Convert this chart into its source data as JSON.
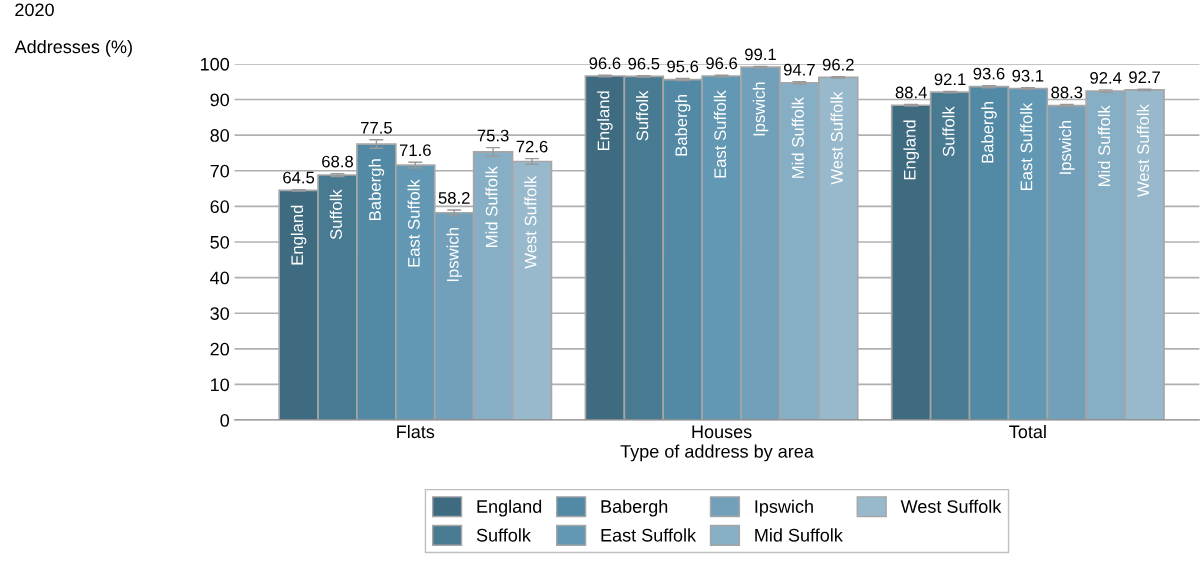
{
  "chart_data": {
    "type": "bar",
    "title": "2020",
    "ylabel": "Addresses (%)",
    "xlabel": "Type of address by area",
    "categories": [
      "Flats",
      "Houses",
      "Total"
    ],
    "series": [
      {
        "name": "England",
        "color": "#3f6b80",
        "values": [
          64.5,
          96.6,
          88.4
        ],
        "errors": [
          0.2,
          0.2,
          0.2
        ]
      },
      {
        "name": "Suffolk",
        "color": "#487a92",
        "values": [
          68.8,
          96.5,
          92.1
        ],
        "errors": [
          0.4,
          0.2,
          0.2
        ]
      },
      {
        "name": "Babergh",
        "color": "#528aa6",
        "values": [
          77.5,
          95.6,
          93.6
        ],
        "errors": [
          1.2,
          0.3,
          0.3
        ]
      },
      {
        "name": "East Suffolk",
        "color": "#6298b3",
        "values": [
          71.6,
          96.6,
          93.1
        ],
        "errors": [
          0.8,
          0.2,
          0.2
        ]
      },
      {
        "name": "Ipswich",
        "color": "#72a0ba",
        "values": [
          58.2,
          99.1,
          88.3
        ],
        "errors": [
          0.8,
          0.2,
          0.3
        ]
      },
      {
        "name": "Mid Suffolk",
        "color": "#86aec4",
        "values": [
          75.3,
          94.7,
          92.4
        ],
        "errors": [
          1.2,
          0.3,
          0.3
        ]
      },
      {
        "name": "West Suffolk",
        "color": "#98b8cc",
        "values": [
          72.6,
          96.2,
          92.7
        ],
        "errors": [
          0.8,
          0.2,
          0.2
        ]
      }
    ],
    "ylim": [
      0,
      100
    ],
    "yticks": [
      0,
      10,
      20,
      30,
      40,
      50,
      60,
      70,
      80,
      90,
      100
    ],
    "grid": "y",
    "legend": "bottom",
    "data_labels": true
  }
}
